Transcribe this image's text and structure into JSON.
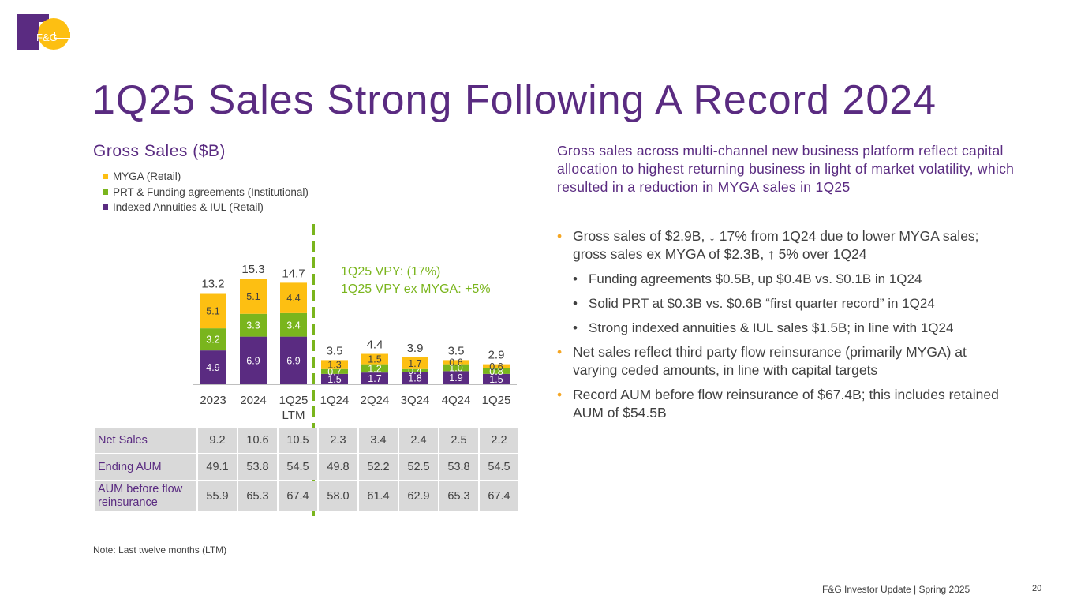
{
  "title": "1Q25 Sales Strong Following A Record 2024",
  "brand": {
    "logo_text": "F&G",
    "purple": "#5a2b81",
    "gold": "#fdbf12",
    "green": "#7ab51d"
  },
  "chart_data": {
    "type": "bar",
    "stacked": true,
    "title": "Gross Sales ($B)",
    "categories": [
      "2023",
      "2024",
      "1Q25 LTM",
      "1Q24",
      "2Q24",
      "3Q24",
      "4Q24",
      "1Q25"
    ],
    "series": [
      {
        "name": "Indexed Annuities & IUL (Retail)",
        "color": "#5a2b81",
        "values": [
          4.9,
          6.9,
          6.9,
          1.5,
          1.7,
          1.8,
          1.9,
          1.5
        ]
      },
      {
        "name": "PRT & Funding agreements (Institutional)",
        "color": "#7ab51d",
        "values": [
          3.2,
          3.3,
          3.4,
          0.7,
          1.2,
          0.4,
          1.0,
          0.8
        ]
      },
      {
        "name": "MYGA (Retail)",
        "color": "#fdbf12",
        "values": [
          5.1,
          5.1,
          4.4,
          1.3,
          1.5,
          1.7,
          0.6,
          0.6
        ]
      }
    ],
    "totals": [
      "13.2",
      "15.3",
      "14.7",
      "3.5",
      "4.4",
      "3.9",
      "3.5",
      "2.9"
    ],
    "legend_order": [
      "MYGA (Retail)",
      "PRT & Funding agreements (Institutional)",
      "Indexed Annuities & IUL (Retail)"
    ],
    "xlabel": "",
    "ylabel": ""
  },
  "annotation": {
    "line1": "1Q25 VPY: (17%)",
    "line2": "1Q25 VPY ex MYGA: +5%"
  },
  "table": {
    "rows": [
      {
        "label": "Net Sales",
        "values": [
          "9.2",
          "10.6",
          "10.5",
          "2.3",
          "3.4",
          "2.4",
          "2.5",
          "2.2"
        ]
      },
      {
        "label": "Ending AUM",
        "values": [
          "49.1",
          "53.8",
          "54.5",
          "49.8",
          "52.2",
          "52.5",
          "53.8",
          "54.5"
        ]
      },
      {
        "label": "AUM before flow reinsurance",
        "values": [
          "55.9",
          "65.3",
          "67.4",
          "58.0",
          "61.4",
          "62.9",
          "65.3",
          "67.4"
        ]
      }
    ]
  },
  "right": {
    "heading": "Gross sales across multi-channel new business platform reflect capital allocation to highest returning business in light of market volatility, which resulted in a reduction in MYGA sales in 1Q25",
    "bullet1": "Gross sales of $2.9B, ↓ 17% from 1Q24 due to lower MYGA sales; gross sales ex MYGA of $2.3B, ↑ 5% over 1Q24",
    "sub1": "Funding agreements $0.5B, up $0.4B vs. $0.1B in 1Q24",
    "sub2": "Solid PRT at $0.3B vs. $0.6B “first quarter record” in 1Q24",
    "sub3": "Strong indexed annuities & IUL sales $1.5B; in line with 1Q24",
    "bullet2": "Net sales reflect third party flow reinsurance (primarily MYGA) at varying ceded amounts, in line with capital targets",
    "bullet3": "Record AUM before flow reinsurance of $67.4B; this includes retained AUM of $54.5B"
  },
  "note": "Note: Last twelve months (LTM)",
  "footer": "F&G Investor Update | Spring 2025",
  "page_number": "20"
}
